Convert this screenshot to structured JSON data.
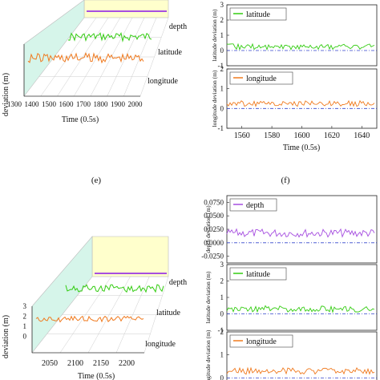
{
  "panel_labels": {
    "e": "(e)",
    "f": "(f)"
  },
  "colors": {
    "depth": "#a64ee0",
    "latitude": "#33cc11",
    "longitude": "#f07a1e",
    "reference": "#3344cc",
    "plane_fill": "#ffffcc",
    "side_fill": "#d6f5ea"
  },
  "chart_data": [
    {
      "id": "3d-top",
      "type": "line",
      "xlabel": "Time (0.5s)",
      "ylabel": "deviation (m)",
      "x_ticks": [
        "1300",
        "1400",
        "1500",
        "1600",
        "1700",
        "1800",
        "1900",
        "2000"
      ],
      "xlim": [
        1300,
        2000
      ],
      "series_labels": [
        "depth",
        "latitude",
        "longitude"
      ],
      "series": [
        {
          "name": "depth",
          "x": [
            1600,
            1650,
            1700,
            1750,
            1800,
            1850,
            1900,
            1950,
            2000
          ],
          "values": [
            0.02,
            0.02,
            0.02,
            0.02,
            0.02,
            0.02,
            0.02,
            0.02,
            0.02
          ]
        },
        {
          "name": "latitude",
          "x": [
            1300,
            1400,
            1500,
            1550,
            1600,
            1650,
            1700,
            1800,
            1900,
            2000
          ],
          "values": [
            0.1,
            0.15,
            0.2,
            0.1,
            0.3,
            0.2,
            0.25,
            0.2,
            0.3,
            0.2
          ]
        },
        {
          "name": "longitude",
          "x": [
            1300,
            1400,
            1500,
            1600,
            1700,
            1800,
            1900,
            2000
          ],
          "values": [
            0.2,
            0.3,
            0.25,
            0.35,
            0.3,
            0.4,
            0.3,
            0.35
          ]
        }
      ]
    },
    {
      "id": "2d-top",
      "type": "line",
      "xlabel": "Time (0.5s)",
      "x_ticks": [
        "1560",
        "1580",
        "1600",
        "1620",
        "1640"
      ],
      "xlim": [
        1550,
        1650
      ],
      "panels": [
        {
          "name": "latitude",
          "ylabel": "latitude deviation (m)",
          "y_ticks": [
            "3",
            "2",
            "1",
            "0",
            "-1"
          ],
          "ylim": [
            -1,
            3
          ],
          "series": [
            {
              "name": "latitude",
              "x": [
                1550,
                1560,
                1570,
                1575,
                1580,
                1590,
                1600,
                1610,
                1620,
                1630,
                1640,
                1650
              ],
              "values": [
                0.3,
                0.2,
                0.4,
                -0.3,
                0.1,
                0.3,
                0.2,
                0.3,
                0.1,
                0.3,
                0.3,
                0.2
              ]
            }
          ]
        },
        {
          "name": "longitude",
          "ylabel": "longitude deviation (m)",
          "y_ticks": [
            "2",
            "1",
            "0",
            "-1"
          ],
          "ylim": [
            -1,
            2
          ],
          "series": [
            {
              "name": "longitude",
              "x": [
                1550,
                1560,
                1570,
                1580,
                1590,
                1600,
                1610,
                1620,
                1630,
                1640,
                1645,
                1650
              ],
              "values": [
                0.4,
                0.3,
                0.2,
                0.4,
                0.2,
                0.3,
                0.3,
                0.4,
                0.2,
                0.3,
                0.4,
                -0.6
              ]
            }
          ]
        }
      ]
    },
    {
      "id": "3d-bottom",
      "type": "line",
      "xlabel": "Time (0.5s)",
      "ylabel": "deviation (m)",
      "z_ticks": [
        "3",
        "2",
        "1",
        "0"
      ],
      "x_ticks": [
        "2050",
        "2100",
        "2150",
        "2200"
      ],
      "xlim": [
        2030,
        2220
      ],
      "series_labels": [
        "depth",
        "latitude",
        "longitude"
      ],
      "series": [
        {
          "name": "depth",
          "x": [
            2110,
            2220
          ],
          "values": [
            0.02,
            0.02
          ]
        },
        {
          "name": "latitude",
          "x": [
            2030,
            2060,
            2090,
            2120,
            2150,
            2180,
            2220
          ],
          "values": [
            0.6,
            0.7,
            0.8,
            0.5,
            0.8,
            0.7,
            0.8
          ]
        },
        {
          "name": "longitude",
          "x": [
            2030,
            2060,
            2090,
            2120,
            2150,
            2180,
            2220
          ],
          "values": [
            0.2,
            0.3,
            0.25,
            0.3,
            0.2,
            0.35,
            0.3
          ]
        }
      ]
    },
    {
      "id": "2d-bottom",
      "type": "line",
      "panels": [
        {
          "name": "depth",
          "ylabel": "depth deviation (m)",
          "y_ticks": [
            "0.0750",
            "0.0500",
            "0.0250",
            "0.0000",
            "-0.0250"
          ],
          "ylim": [
            -0.0375,
            0.0875
          ],
          "series": [
            {
              "name": "depth",
              "x": [
                0,
                10,
                20,
                30,
                40,
                50,
                60,
                70,
                80,
                90,
                100
              ],
              "values": [
                0.02,
                0.025,
                0.018,
                0.03,
                0.015,
                0.028,
                0.02,
                0.035,
                0.018,
                0.025,
                0.03
              ]
            }
          ]
        },
        {
          "name": "latitude",
          "ylabel": "latitude deviation (m)",
          "y_ticks": [
            "3",
            "2",
            "1",
            "0",
            "-1"
          ],
          "ylim": [
            -1,
            3
          ],
          "series": [
            {
              "name": "latitude",
              "x": [
                0,
                10,
                20,
                30,
                40,
                50,
                55,
                60,
                70,
                80,
                90,
                100
              ],
              "values": [
                0.3,
                0.2,
                0.3,
                0.1,
                0.2,
                -0.5,
                0.5,
                0.4,
                0.5,
                0.3,
                0.5,
                0.4
              ]
            }
          ]
        },
        {
          "name": "longitude",
          "ylabel": "longitude deviation (m)",
          "y_ticks": [
            "2",
            "1",
            "0"
          ],
          "ylim": [
            -0.3,
            2
          ],
          "series": [
            {
              "name": "longitude",
              "x": [
                0,
                10,
                20,
                30,
                40,
                50,
                60,
                70,
                80,
                90,
                100
              ],
              "values": [
                0.3,
                0.1,
                0.4,
                0.0,
                0.3,
                0.1,
                0.4,
                0.0,
                0.3,
                0.1,
                0.2
              ]
            }
          ]
        }
      ]
    }
  ],
  "bottom_xlabel_partial": "Time (0.5s)",
  "bottom_ylabel_partial": "e deviation (m)"
}
